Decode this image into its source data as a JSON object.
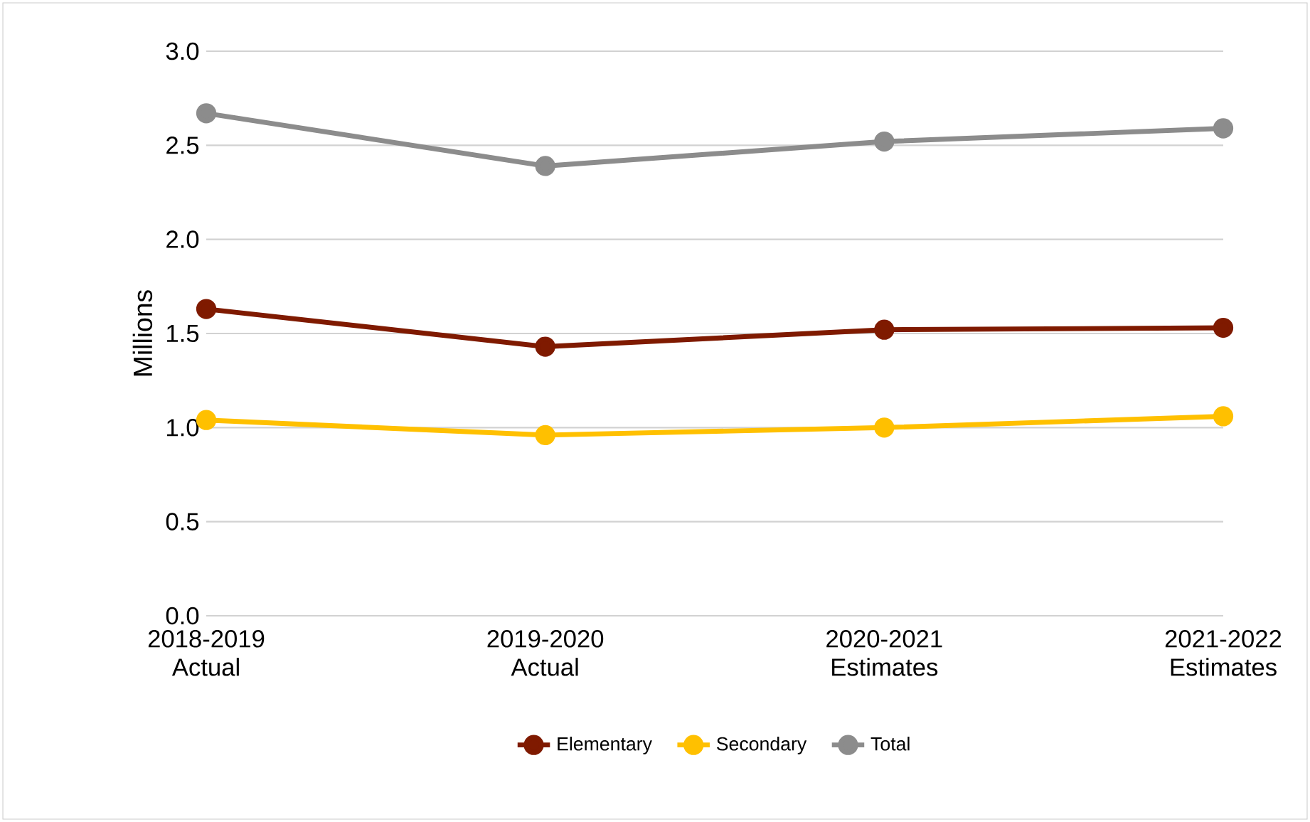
{
  "chart_data": {
    "type": "line",
    "ylabel": "Millions",
    "categories": [
      "2018-2019 Actual",
      "2019-2020 Actual",
      "2020-2021 Estimates",
      "2021-2022 Estimates"
    ],
    "series": [
      {
        "name": "Elementary",
        "color": "#7f1a00",
        "values": [
          1.63,
          1.43,
          1.52,
          1.53
        ]
      },
      {
        "name": "Secondary",
        "color": "#ffc000",
        "values": [
          1.04,
          0.96,
          1.0,
          1.06
        ]
      },
      {
        "name": "Total",
        "color": "#8c8c8c",
        "values": [
          2.67,
          2.39,
          2.52,
          2.59
        ]
      }
    ],
    "ylim": [
      0,
      3
    ],
    "yticks": [
      {
        "value": 0,
        "label": "0.0"
      },
      0.5,
      {
        "value": 1,
        "label": "1.0"
      },
      1.5,
      {
        "value": 2,
        "label": "2.0"
      },
      2.5,
      {
        "value": 3,
        "label": "3.0"
      }
    ],
    "grid": "y",
    "legend": "bottom",
    "marker": "circle",
    "line_style": "solid"
  }
}
